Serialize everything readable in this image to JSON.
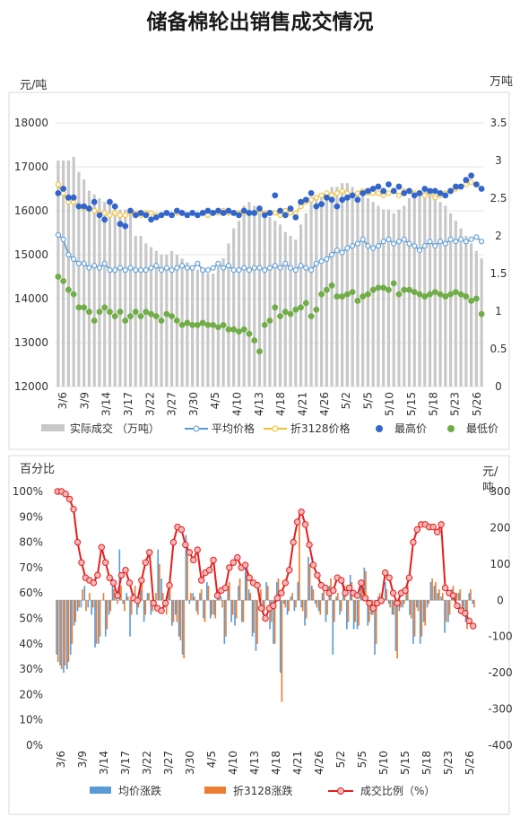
{
  "title": "储备棉轮出销售成交情况",
  "chart_data": [
    {
      "type": "bar+line+scatter",
      "ylabel_left": "元/吨",
      "ylabel_right": "万吨",
      "ylim_left": [
        12000,
        18000
      ],
      "ylim_right": [
        0,
        3.5
      ],
      "yticks_left": [
        "12000",
        "13000",
        "14000",
        "15000",
        "16000",
        "17000",
        "18000"
      ],
      "yticks_right": [
        "0",
        "0.5",
        "1",
        "1.5",
        "2",
        "2.5",
        "3",
        "3.5"
      ],
      "tick_labels": [
        "3/6",
        "3/9",
        "3/14",
        "3/17",
        "3/22",
        "3/27",
        "3/30",
        "4/5",
        "4/10",
        "4/13",
        "4/18",
        "4/21",
        "4/26",
        "5/2",
        "5/5",
        "5/10",
        "5/15",
        "5/18",
        "5/23",
        "5/26"
      ],
      "legend": [
        "实际成交 （万吨）",
        "平均价格",
        "折3128价格",
        "最高价",
        "最低价"
      ],
      "colors": {
        "bar": "#c8c8c8",
        "avg": "#5b9bd5",
        "zhe": "#f2c12e",
        "high": "#3366cc",
        "low": "#70ad47"
      },
      "volume": [
        3.0,
        3.0,
        3.0,
        3.05,
        2.85,
        2.75,
        2.6,
        2.55,
        2.5,
        2.45,
        2.45,
        2.4,
        2.35,
        2.35,
        2.3,
        2.0,
        2.0,
        1.9,
        1.85,
        1.8,
        1.75,
        1.75,
        1.8,
        1.75,
        1.7,
        1.65,
        1.6,
        1.55,
        1.55,
        1.5,
        1.5,
        1.6,
        1.7,
        1.9,
        2.1,
        2.2,
        2.4,
        2.45,
        2.4,
        2.35,
        2.3,
        2.25,
        2.2,
        2.15,
        2.05,
        2.0,
        1.95,
        2.15,
        2.3,
        2.45,
        2.5,
        2.55,
        2.6,
        2.65,
        2.65,
        2.7,
        2.7,
        2.65,
        2.6,
        2.55,
        2.5,
        2.45,
        2.4,
        2.35,
        2.35,
        2.3,
        2.35,
        2.4,
        2.5,
        2.55,
        2.6,
        2.6,
        2.55,
        2.5,
        2.45,
        2.4,
        2.3,
        2.2,
        2.1,
        2.0,
        1.9,
        1.8,
        1.7
      ],
      "avg_price": [
        15450,
        15350,
        15000,
        14900,
        14800,
        14800,
        14700,
        14750,
        14700,
        14800,
        14650,
        14650,
        14700,
        14650,
        14700,
        14650,
        14650,
        14650,
        14700,
        14750,
        14650,
        14700,
        14650,
        14700,
        14750,
        14700,
        14700,
        14800,
        14650,
        14650,
        14700,
        14800,
        14700,
        14750,
        14650,
        14650,
        14700,
        14650,
        14700,
        14700,
        14650,
        14700,
        14750,
        14700,
        14800,
        14700,
        14650,
        14750,
        14700,
        14650,
        14800,
        14850,
        14900,
        15000,
        15100,
        15050,
        15150,
        15200,
        15250,
        15350,
        15200,
        15150,
        15200,
        15300,
        15350,
        15250,
        15300,
        15350,
        15250,
        15200,
        15100,
        15200,
        15300,
        15200,
        15300,
        15250,
        15350,
        15300,
        15350,
        15300,
        15350,
        15400,
        15300
      ],
      "zhe_price": [
        16600,
        16400,
        16200,
        16200,
        16100,
        16050,
        16050,
        16000,
        15950,
        15950,
        15900,
        15950,
        15900,
        15900,
        15950,
        15950,
        15900,
        15950,
        15950,
        15900,
        15900,
        15950,
        15900,
        15950,
        15950,
        15900,
        15950,
        15900,
        15950,
        15900,
        15950,
        15950,
        16000,
        15950,
        15950,
        15950,
        15950,
        15950,
        15950,
        16000,
        15950,
        15950,
        15950,
        15900,
        16000,
        15950,
        15950,
        16100,
        16200,
        16250,
        16300,
        16350,
        16400,
        16350,
        16400,
        16450,
        16400,
        16350,
        16400,
        16450,
        16400,
        16400,
        16400,
        16350,
        16400,
        16450,
        16350,
        16450,
        16450,
        16400,
        16400,
        16350,
        16400,
        16300,
        16350,
        16400,
        16450,
        16500,
        16550,
        16600,
        16650,
        16600,
        16500
      ],
      "high_price": [
        16400,
        16500,
        16300,
        16300,
        16100,
        16100,
        16050,
        16200,
        15900,
        15800,
        16200,
        16100,
        15700,
        15650,
        16000,
        15900,
        15950,
        15900,
        15800,
        15850,
        15900,
        15950,
        15900,
        16000,
        15950,
        15900,
        15950,
        15900,
        15950,
        16000,
        15950,
        16000,
        15950,
        16000,
        15950,
        15900,
        16000,
        15950,
        15950,
        16050,
        15900,
        15950,
        16350,
        16000,
        15900,
        16050,
        15850,
        16200,
        16250,
        16400,
        16100,
        16150,
        16300,
        16250,
        16100,
        16250,
        16300,
        16350,
        16250,
        16400,
        16450,
        16500,
        16550,
        16450,
        16600,
        16450,
        16550,
        16400,
        16450,
        16350,
        16400,
        16500,
        16450,
        16450,
        16400,
        16350,
        16450,
        16550,
        16550,
        16700,
        16800,
        16600,
        16500
      ],
      "low_price": [
        14500,
        14400,
        14200,
        14100,
        13800,
        13800,
        13700,
        13500,
        13700,
        13800,
        13700,
        13600,
        13700,
        13500,
        13600,
        13700,
        13600,
        13700,
        13650,
        13600,
        13500,
        13650,
        13600,
        13500,
        13400,
        13450,
        13400,
        13400,
        13450,
        13400,
        13400,
        13350,
        13400,
        13300,
        13300,
        13250,
        13300,
        13200,
        13050,
        12800,
        13400,
        13500,
        13800,
        13600,
        13700,
        13650,
        13750,
        13800,
        13900,
        13600,
        13750,
        14100,
        14200,
        14300,
        14050,
        14050,
        14100,
        14150,
        13950,
        14050,
        14100,
        14200,
        14250,
        14250,
        14200,
        14350,
        14100,
        14200,
        14200,
        14150,
        14100,
        14050,
        14100,
        14150,
        14100,
        14050,
        14100,
        14150,
        14100,
        14050,
        13950,
        14000,
        13650
      ]
    },
    {
      "type": "bar+line",
      "ylabel_left": "百分比",
      "ylabel_right": "元/吨",
      "ylim_left": [
        0,
        100
      ],
      "ylim_right": [
        -400,
        300
      ],
      "yticks_left": [
        "0%",
        "10%",
        "20%",
        "30%",
        "40%",
        "50%",
        "60%",
        "70%",
        "80%",
        "90%",
        "100%"
      ],
      "yticks_right": [
        "-400",
        "-300",
        "-200",
        "-100",
        "0",
        "100",
        "200",
        "300"
      ],
      "tick_labels": [
        "3/6",
        "3/9",
        "3/14",
        "3/17",
        "3/22",
        "3/27",
        "3/30",
        "4/5",
        "4/10",
        "4/13",
        "4/18",
        "4/21",
        "4/26",
        "5/2",
        "5/5",
        "5/10",
        "5/15",
        "5/18",
        "5/23",
        "5/26"
      ],
      "legend": [
        "均价涨跌",
        "折3128涨跌",
        "成交比例（%）"
      ],
      "colors": {
        "avg": "#5b9bd5",
        "zhe": "#ed7d31",
        "ratio": "#e81c1c"
      },
      "avg_change": [
        -150,
        -180,
        -200,
        -190,
        -150,
        -70,
        -30,
        -20,
        40,
        -20,
        -40,
        -130,
        -120,
        0,
        -100,
        -40,
        60,
        20,
        140,
        -10,
        20,
        -100,
        20,
        -40,
        30,
        -60,
        20,
        -40,
        -10,
        140,
        60,
        -20,
        30,
        -70,
        -40,
        -100,
        -150,
        180,
        -10,
        20,
        -30,
        20,
        -50,
        50,
        -50,
        -40,
        20,
        10,
        -120,
        40,
        -60,
        -70,
        40,
        -60,
        90,
        30,
        -100,
        -140,
        20,
        -40,
        50,
        -80,
        -120,
        50,
        -200,
        -10,
        -40,
        10,
        -30,
        50,
        -20,
        -70,
        120,
        40,
        -10,
        -30,
        20,
        -60,
        40,
        -150,
        10,
        -40,
        60,
        -80,
        70,
        -80,
        -80,
        40,
        90,
        -70,
        -40,
        -150,
        10,
        -10,
        50,
        -10,
        -40,
        -140,
        -30,
        -20,
        30,
        -40,
        -120,
        -20,
        -120,
        -60,
        -20,
        50,
        40,
        20,
        10,
        -90,
        -60,
        30,
        10,
        20,
        -40,
        -60,
        20,
        -10
      ],
      "zhe_change": [
        -170,
        -190,
        -180,
        -170,
        -120,
        -60,
        -20,
        30,
        -30,
        20,
        -20,
        -120,
        -100,
        20,
        -80,
        -30,
        30,
        -10,
        40,
        -30,
        10,
        -40,
        40,
        -20,
        60,
        -40,
        20,
        -30,
        20,
        100,
        20,
        -40,
        50,
        -60,
        -60,
        -110,
        -160,
        150,
        20,
        10,
        -40,
        30,
        -60,
        40,
        -40,
        -50,
        30,
        -20,
        -100,
        50,
        -40,
        -50,
        60,
        -60,
        80,
        20,
        -90,
        -120,
        30,
        -30,
        40,
        -60,
        -120,
        60,
        -280,
        -20,
        -30,
        20,
        -20,
        240,
        -30,
        -50,
        100,
        30,
        -20,
        -40,
        30,
        -40,
        60,
        -60,
        20,
        -30,
        40,
        -60,
        50,
        -60,
        -70,
        50,
        80,
        -60,
        -40,
        -120,
        20,
        -10,
        30,
        -20,
        -40,
        -160,
        -20,
        -10,
        40,
        -50,
        -100,
        -30,
        -100,
        -70,
        -10,
        60,
        50,
        30,
        20,
        -60,
        -40,
        40,
        20,
        30,
        -30,
        -80,
        30,
        -20
      ],
      "ratio": [
        100,
        100,
        99,
        97,
        93,
        80,
        72,
        66,
        65,
        64,
        67,
        78,
        72,
        66,
        64,
        59,
        67,
        69,
        64,
        58,
        57,
        65,
        72,
        76,
        56,
        54,
        53,
        56,
        63,
        80,
        86,
        85,
        79,
        76,
        73,
        77,
        65,
        68,
        69,
        73,
        59,
        61,
        62,
        70,
        72,
        74,
        70,
        71,
        66,
        64,
        63,
        54,
        50,
        54,
        55,
        58,
        60,
        64,
        69,
        80,
        88,
        92,
        87,
        79,
        71,
        67,
        63,
        62,
        60,
        61,
        66,
        65,
        60,
        62,
        60,
        59,
        64,
        58,
        56,
        54,
        56,
        57,
        68,
        66,
        60,
        56,
        60,
        61,
        66,
        80,
        85,
        87,
        87,
        86,
        86,
        84,
        87,
        62,
        60,
        59,
        55,
        53,
        52,
        49,
        47
      ]
    }
  ]
}
